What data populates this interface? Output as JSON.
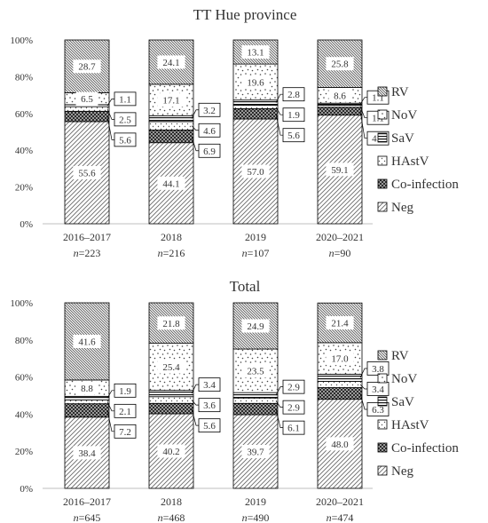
{
  "chart_data": [
    {
      "type": "bar",
      "stacked": true,
      "title": "TT Hue province",
      "categories": [
        "2016–2017",
        "2018",
        "2019",
        "2020–2021"
      ],
      "sample_sizes": [
        "n=223",
        "n=216",
        "n=107",
        "n=90"
      ],
      "ylim": [
        0,
        100
      ],
      "ytick_labels": [
        "0%",
        "20%",
        "40%",
        "60%",
        "80%",
        "100%"
      ],
      "legend_position": "right",
      "series": [
        {
          "name": "Neg",
          "values": [
            55.6,
            44.1,
            57.0,
            59.1
          ]
        },
        {
          "name": "Co-infection",
          "values": [
            5.6,
            6.9,
            5.6,
            4.3
          ]
        },
        {
          "name": "HAstV",
          "values": [
            2.5,
            4.6,
            1.9,
            1.1
          ]
        },
        {
          "name": "SaV",
          "values": [
            1.1,
            3.2,
            2.8,
            1.1
          ]
        },
        {
          "name": "NoV",
          "values": [
            6.5,
            17.1,
            19.6,
            8.6
          ]
        },
        {
          "name": "RV",
          "values": [
            28.7,
            24.1,
            13.1,
            25.8
          ]
        }
      ],
      "label_text": [
        [
          "55.6",
          "5.6",
          "2.5",
          "1.1",
          "6.5",
          "28.7"
        ],
        [
          "44.1",
          "6.9",
          "4.6",
          "3.2",
          "17.1",
          "24.1"
        ],
        [
          "57.0",
          "5.6",
          "1.9",
          "2.8",
          "19.6",
          "13.1"
        ],
        [
          "59.1",
          "4.3",
          "1.1",
          "1.1",
          "8.6",
          "25.8"
        ]
      ]
    },
    {
      "type": "bar",
      "stacked": true,
      "title": "Total",
      "categories": [
        "2016–2017",
        "2018",
        "2019",
        "2020–2021"
      ],
      "sample_sizes": [
        "n=645",
        "n=468",
        "n=490",
        "n=474"
      ],
      "ylim": [
        0,
        100
      ],
      "ytick_labels": [
        "0%",
        "20%",
        "40%",
        "60%",
        "80%",
        "100%"
      ],
      "legend_position": "right",
      "series": [
        {
          "name": "Neg",
          "values": [
            38.4,
            40.2,
            39.7,
            48.0
          ]
        },
        {
          "name": "Co-infection",
          "values": [
            7.2,
            5.6,
            6.1,
            6.3
          ]
        },
        {
          "name": "HAstV",
          "values": [
            2.1,
            3.6,
            2.9,
            3.4
          ]
        },
        {
          "name": "SaV",
          "values": [
            1.9,
            3.4,
            2.9,
            3.8
          ]
        },
        {
          "name": "NoV",
          "values": [
            8.8,
            25.4,
            23.5,
            17.0
          ]
        },
        {
          "name": "RV",
          "values": [
            41.6,
            21.8,
            24.9,
            21.4
          ]
        }
      ],
      "label_text": [
        [
          "38.4",
          "7.2",
          "2.1",
          "1.9",
          "8.8",
          "41.6"
        ],
        [
          "40.2",
          "5.6",
          "3.6",
          "3.4",
          "25.4",
          "21.8"
        ],
        [
          "39.7",
          "6.1",
          "2.9",
          "2.9",
          "23.5",
          "24.9"
        ],
        [
          "48.0",
          "6.3",
          "3.4",
          "3.8",
          "17.0",
          "21.4"
        ]
      ]
    }
  ],
  "legend_order": [
    "RV",
    "NoV",
    "SaV",
    "HAstV",
    "Co-infection",
    "Neg"
  ],
  "series_patterns": {
    "Neg": "diagonal-fine",
    "Co-infection": "dark-checker",
    "HAstV": "sparse-dots",
    "SaV": "horizontal-lines",
    "NoV": "scattered-dots",
    "RV": "diagonal-dense"
  }
}
